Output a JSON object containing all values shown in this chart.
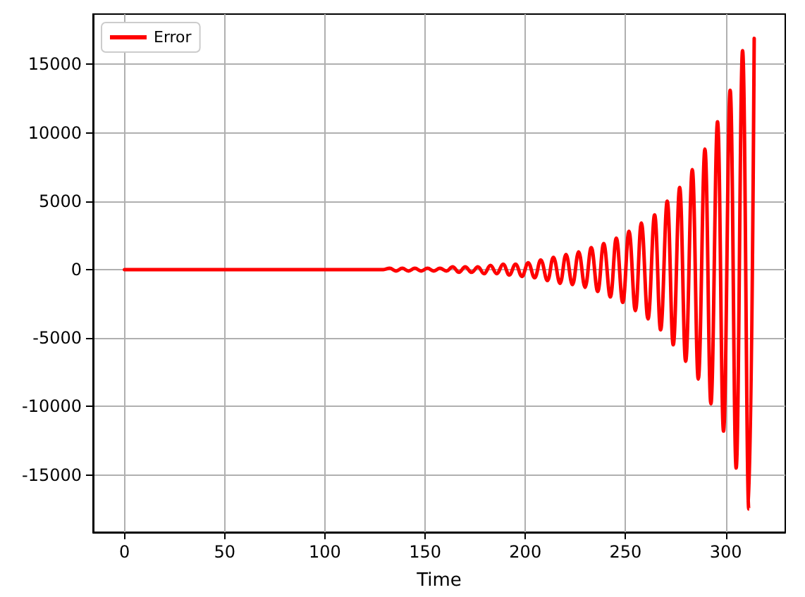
{
  "chart_data": {
    "type": "line",
    "xlabel": "Time",
    "xlim": [
      -15.7,
      329.7
    ],
    "xticks": [
      0,
      50,
      100,
      150,
      200,
      250,
      300
    ],
    "ylim": [
      -19190,
      18670
    ],
    "yticks": [
      -15000,
      -10000,
      -5000,
      0,
      5000,
      10000,
      15000
    ],
    "grid": true,
    "legend": "top left",
    "marker": "none",
    "line_style": "solid",
    "x": [
      0,
      50,
      100,
      107.2,
      110.4,
      113.5,
      116.6,
      119.8,
      122.9,
      126.0,
      129.2,
      132.3,
      135.5,
      138.6,
      141.7,
      144.9,
      148.0,
      151.2,
      154.3,
      157.4,
      160.6,
      163.7,
      166.9,
      170.0,
      173.2,
      176.3,
      179.4,
      182.6,
      185.7,
      188.9,
      192.0,
      195.1,
      198.3,
      201.4,
      204.6,
      207.7,
      211.0,
      214.0,
      217.3,
      220.3,
      223.5,
      226.6,
      229.8,
      232.9,
      236.1,
      239.1,
      242.4,
      245.4,
      248.6,
      251.7,
      254.9,
      257.9,
      261.2,
      264.5,
      267.5,
      270.8,
      273.8,
      277.0,
      280.0,
      283.3,
      286.3,
      289.6,
      292.6,
      295.9,
      298.9,
      302.2,
      305.2,
      308.4,
      311.5,
      314.2
    ],
    "series": [
      {
        "name": "Error",
        "color": "#ff0000",
        "values": [
          0,
          0,
          0,
          0,
          0,
          0,
          0,
          0,
          0,
          0,
          0,
          100,
          -100,
          100,
          -100,
          100,
          -100,
          100,
          -100,
          100,
          -100,
          200,
          -200,
          200,
          -200,
          200,
          -300,
          300,
          -300,
          400,
          -400,
          400,
          -500,
          500,
          -600,
          700,
          -800,
          900,
          -1000,
          1100,
          -1100,
          1300,
          -1300,
          1600,
          -1600,
          1900,
          -2000,
          2300,
          -2400,
          2800,
          -3000,
          3400,
          -3600,
          4000,
          -4400,
          5000,
          -5500,
          6000,
          -6700,
          7300,
          -8000,
          8800,
          -9800,
          10800,
          -11800,
          13100,
          -14500,
          16000,
          -17500,
          16900
        ]
      }
    ]
  }
}
